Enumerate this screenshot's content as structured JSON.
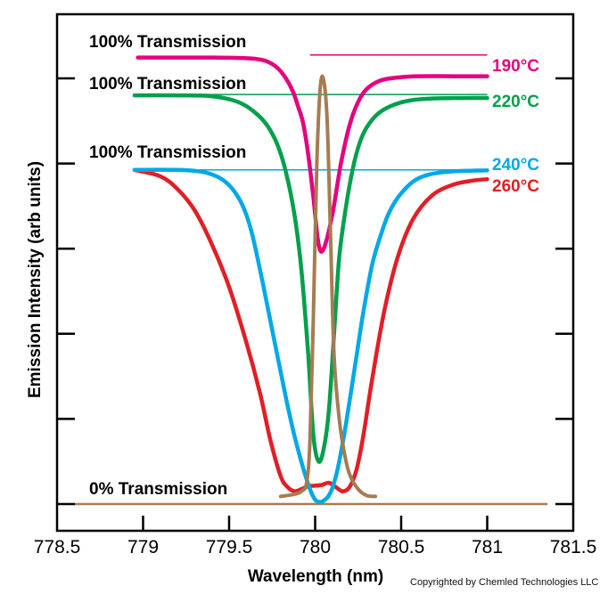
{
  "chart_data": {
    "type": "line",
    "xlabel": "Wavelength (nm)",
    "ylabel": "Emission Intensity (arb units)",
    "xlim": [
      778.5,
      781.5
    ],
    "ylim": [
      0,
      100
    ],
    "x_ticks": [
      "778.5",
      "779",
      "779.5",
      "780",
      "780.5",
      "781",
      "781.5"
    ],
    "y_tick_count": 6,
    "grid": false,
    "legend": "none",
    "annotations": [
      {
        "text": "100% Transmission",
        "level": 105.5
      },
      {
        "text": "100% Transmission",
        "level": 98.2
      },
      {
        "text": "100% Transmission",
        "level": 88.0
      },
      {
        "text": "0% Transmission",
        "level": 0
      }
    ],
    "series": [
      {
        "name": "190°C",
        "color": "#e6007e",
        "width": 4.5,
        "x": [
          778.97,
          779.2,
          779.4,
          779.55,
          779.65,
          779.72,
          779.78,
          779.83,
          779.87,
          779.9,
          779.93,
          779.96,
          779.99,
          780.02,
          780.05,
          780.1,
          780.15,
          780.2,
          780.25,
          780.3,
          780.38,
          780.48,
          780.6,
          780.8,
          781.0
        ],
        "y": [
          104.9,
          104.9,
          104.9,
          104.8,
          104.6,
          104.0,
          102.5,
          100.0,
          97.0,
          93.5,
          89.5,
          82.0,
          72.0,
          61.0,
          60.0,
          68.0,
          80.0,
          89.0,
          94.5,
          97.5,
          99.5,
          100.2,
          100.5,
          100.5,
          100.5
        ]
      },
      {
        "name": "220°C",
        "color": "#00a04b",
        "width": 4.5,
        "x": [
          778.95,
          779.2,
          779.4,
          779.55,
          779.65,
          779.72,
          779.78,
          779.83,
          779.88,
          779.92,
          779.96,
          779.99,
          780.02,
          780.05,
          780.08,
          780.11,
          780.14,
          780.18,
          780.22,
          780.26,
          780.3,
          780.36,
          780.44,
          780.55,
          780.7,
          781.0
        ],
        "y": [
          96.0,
          96.0,
          95.8,
          94.5,
          92.0,
          89.0,
          84.5,
          78.0,
          68.0,
          55.0,
          35.0,
          16.0,
          10.0,
          13.0,
          22.0,
          40.0,
          58.0,
          70.0,
          79.0,
          85.0,
          88.5,
          91.5,
          93.5,
          94.8,
          95.3,
          95.4
        ]
      },
      {
        "name": "240°C",
        "color": "#00a9e6",
        "width": 4.5,
        "x": [
          778.95,
          779.2,
          779.35,
          779.45,
          779.52,
          779.58,
          779.63,
          779.68,
          779.73,
          779.78,
          779.83,
          779.88,
          779.93,
          779.97,
          780.0,
          780.03,
          780.05,
          780.08,
          780.11,
          780.14,
          780.18,
          780.23,
          780.28,
          780.33,
          780.38,
          780.43,
          780.5,
          780.6,
          780.75,
          781.0
        ],
        "y": [
          78.5,
          78.5,
          78.0,
          76.5,
          74.0,
          70.0,
          64.0,
          55.0,
          45.0,
          35.0,
          25.0,
          16.0,
          8.5,
          3.5,
          1.0,
          0.5,
          0.8,
          2.0,
          5.0,
          10.0,
          19.0,
          32.0,
          45.0,
          56.0,
          63.0,
          68.5,
          73.0,
          76.5,
          78.0,
          78.4
        ]
      },
      {
        "name": "260°C",
        "color": "#e31e24",
        "width": 4.5,
        "x": [
          778.95,
          779.1,
          779.2,
          779.3,
          779.4,
          779.5,
          779.6,
          779.68,
          779.74,
          779.8,
          779.84,
          779.88,
          779.92,
          779.96,
          780.0,
          780.04,
          780.08,
          780.12,
          780.16,
          780.2,
          780.24,
          780.28,
          780.33,
          780.4,
          780.48,
          780.57,
          780.68,
          780.8,
          780.92,
          781.0
        ],
        "y": [
          78.5,
          77.0,
          74.0,
          69.0,
          61.0,
          51.0,
          38.0,
          26.0,
          15.0,
          6.5,
          4.0,
          3.0,
          3.5,
          4.2,
          4.3,
          4.5,
          5.0,
          4.0,
          3.0,
          4.0,
          8.0,
          16.0,
          29.0,
          45.0,
          58.0,
          67.0,
          72.5,
          75.0,
          76.0,
          76.3
        ]
      },
      {
        "name": "",
        "color": "#a57c52",
        "width": 4,
        "x": [
          779.8,
          779.88,
          779.92,
          779.95,
          779.97,
          779.99,
          780.01,
          780.03,
          780.05,
          780.07,
          780.09,
          780.11,
          780.14,
          780.17,
          780.2,
          780.25,
          780.3,
          780.35
        ],
        "y": [
          1.8,
          2.3,
          3.0,
          5.0,
          15.0,
          45.0,
          80.0,
          98.0,
          99.5,
          90.0,
          62.0,
          35.0,
          20.0,
          12.0,
          7.0,
          3.5,
          2.0,
          1.8
        ]
      }
    ],
    "reference_lines": [
      {
        "level": 105.5,
        "from": 779.97,
        "to": 781.0,
        "color": "#e6007e"
      },
      {
        "level": 96.2,
        "from": 778.95,
        "to": 781.0,
        "color": "#00a04b"
      },
      {
        "level": 78.5,
        "from": 778.95,
        "to": 781.0,
        "color": "#00a9e6"
      },
      {
        "level": 0,
        "from": 778.6,
        "to": 781.35,
        "color": "#a57c52"
      }
    ]
  },
  "labels": {
    "t190": "190°C",
    "t220": "220°C",
    "t240": "240°C",
    "t260": "260°C",
    "transmission_100": "100% Transmission",
    "transmission_0": "0% Transmission"
  },
  "copyright": "Copyrighted by Chemled Technologies LLC"
}
